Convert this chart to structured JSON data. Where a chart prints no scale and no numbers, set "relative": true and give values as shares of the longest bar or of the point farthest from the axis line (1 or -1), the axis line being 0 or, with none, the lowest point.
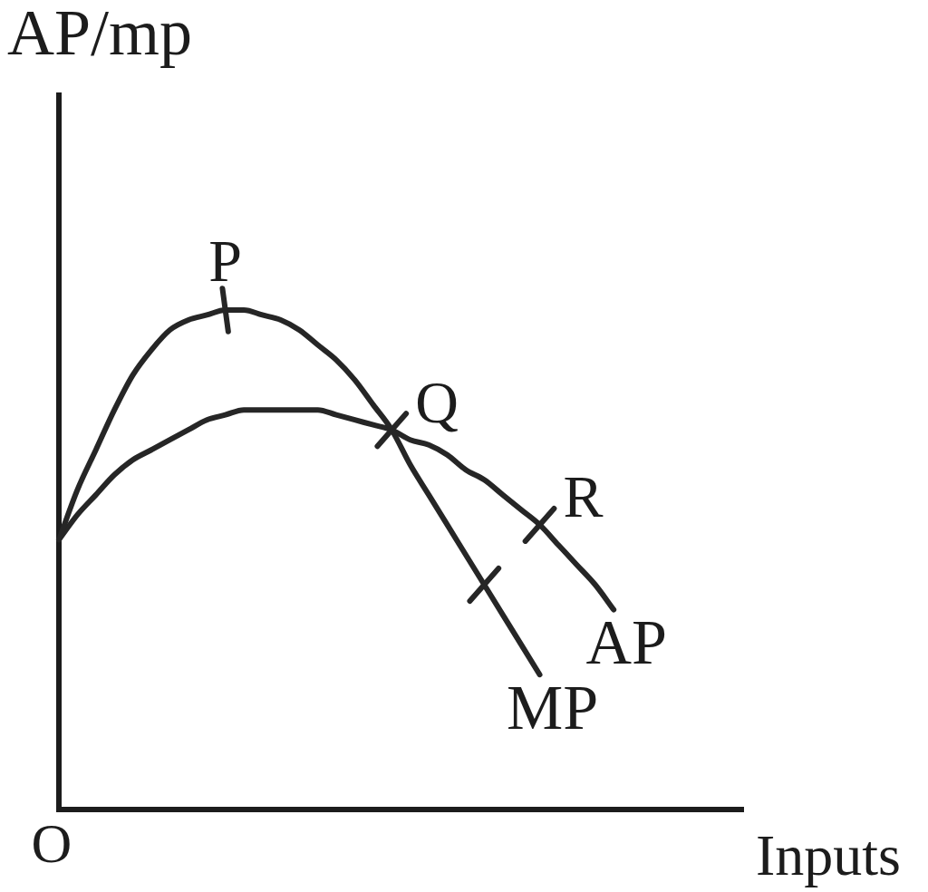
{
  "chart_data": {
    "type": "line",
    "relative": true,
    "ylabel": "AP/mp",
    "xlabel": "Inputs",
    "categories": [
      null,
      null,
      null,
      null,
      null,
      null,
      null,
      null,
      null,
      null,
      null,
      null,
      null,
      null,
      null,
      null,
      null,
      null,
      null,
      null,
      null,
      null,
      null,
      null,
      null,
      null,
      null,
      null,
      null,
      null,
      null,
      null,
      null,
      null,
      null,
      null,
      null,
      null
    ],
    "series": [
      {
        "name": "MP",
        "color": "#262626",
        "values": [
          0.54,
          0.64,
          0.72,
          0.8,
          0.87,
          0.92,
          0.96,
          0.98,
          0.99,
          1,
          1,
          0.99,
          0.98,
          0.96,
          0.93,
          0.9,
          0.86,
          0.81,
          0.76,
          0.69,
          0.63,
          0.57,
          0.51,
          0.45,
          0.39,
          0.33,
          0.27,
          null,
          null,
          null,
          null,
          null,
          null,
          null,
          null,
          null,
          null,
          null
        ]
      },
      {
        "name": "AP",
        "color": "#262626",
        "values": [
          0.54,
          0.59,
          0.63,
          0.67,
          0.7,
          0.72,
          0.74,
          0.76,
          0.78,
          0.79,
          0.8,
          0.8,
          0.8,
          0.8,
          0.8,
          0.79,
          0.78,
          0.77,
          0.76,
          0.74,
          0.73,
          0.71,
          0.68,
          0.66,
          0.63,
          0.6,
          0.57,
          0.53,
          0.49,
          0.45,
          0.4,
          null,
          null,
          null,
          null,
          null,
          null,
          null
        ]
      }
    ],
    "annotations": [
      "O",
      "P",
      "Q",
      "R"
    ]
  }
}
